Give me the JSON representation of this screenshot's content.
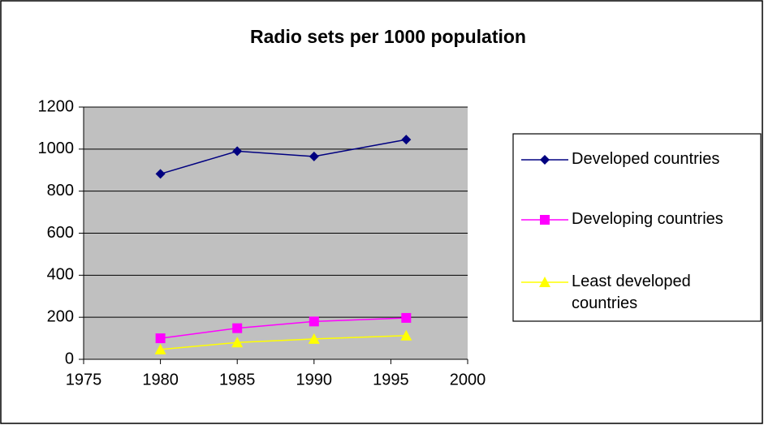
{
  "chart_data": {
    "type": "line",
    "title": "Radio sets per 1000 population",
    "x": [
      1980,
      1985,
      1990,
      1996
    ],
    "series": [
      {
        "name": "Developed countries",
        "color": "#000080",
        "marker": "diamond",
        "values": [
          882,
          990,
          965,
          1045
        ]
      },
      {
        "name": "Developing countries",
        "color": "#ff00ff",
        "marker": "square",
        "values": [
          100,
          148,
          180,
          197
        ]
      },
      {
        "name": "Least developed countries",
        "color": "#ffff00",
        "marker": "triangle",
        "values": [
          47,
          80,
          97,
          113
        ]
      }
    ],
    "xlim": [
      1975,
      2000
    ],
    "xticks": [
      1975,
      1980,
      1985,
      1990,
      1995,
      2000
    ],
    "ylim": [
      0,
      1200
    ],
    "yticks": [
      0,
      200,
      400,
      600,
      800,
      1000,
      1200
    ],
    "grid": true,
    "legend": "right"
  }
}
